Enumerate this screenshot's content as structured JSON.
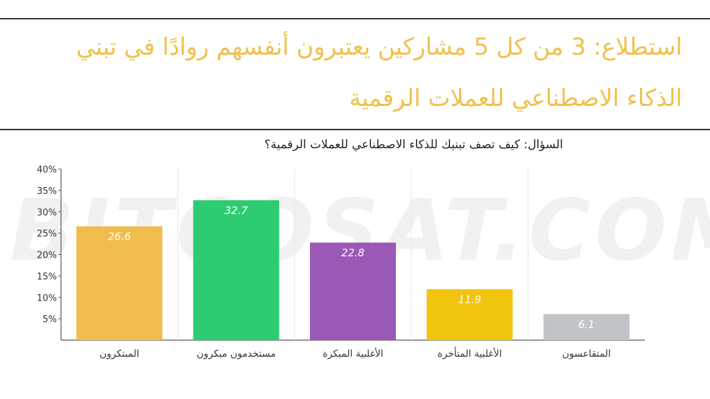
{
  "header": {
    "line1": "استطلاع: 3 من كل 5 مشاركين يعتبرون أنفسهم روادًا في تبني",
    "line2": "الذكاء الاصطناعي للعملات الرقمية",
    "color": "#f0c14b"
  },
  "watermark": "BITCOSAT.COM",
  "chart_data": {
    "type": "bar",
    "title": "السؤال: كيف تصف تبنيك للذكاء الاصطناعي للعملات الرقمية؟",
    "categories": [
      "المبتكرون",
      "مستخدمون مبكرون",
      "الأغلبية المبكرة",
      "الأغلبية المتأخرة",
      "المتقاعسون"
    ],
    "values": [
      26.6,
      32.7,
      22.8,
      11.9,
      6.1
    ],
    "value_labels": [
      "26.6",
      "32.7",
      "22.8",
      "11.9",
      "6.1"
    ],
    "colors": [
      "#f0bd4c",
      "#2ecc71",
      "#9b59b6",
      "#f1c40f",
      "#c0c4c8"
    ],
    "yticks": [
      "5%",
      "10%",
      "15%",
      "20%",
      "25%",
      "30%",
      "35%",
      "40%"
    ],
    "ytick_values": [
      5,
      10,
      15,
      20,
      25,
      30,
      35,
      40
    ],
    "ylim": [
      0,
      40
    ],
    "xlabel": "",
    "ylabel": "",
    "grid": "vertical separators",
    "legend": "none"
  }
}
